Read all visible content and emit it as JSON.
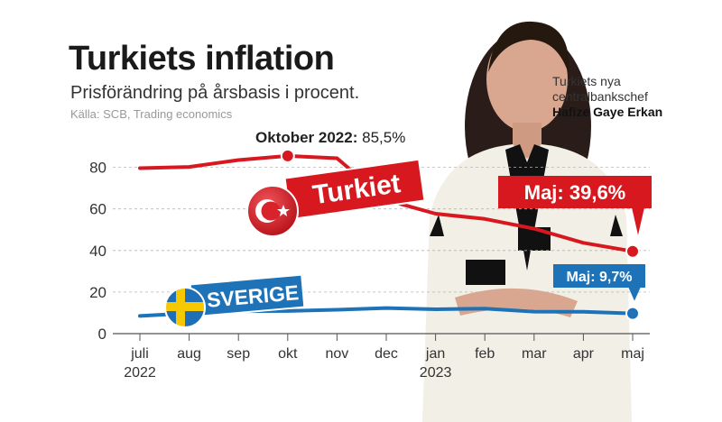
{
  "header": {
    "title": "Turkiets inflation",
    "subtitle": "Prisförändring på årsbasis i procent.",
    "source": "Källa: SCB, Trading economics"
  },
  "photo_caption": {
    "line1": "Turkiets nya",
    "line2": "centralbankschef",
    "name": "Hafize Gaye Erkan"
  },
  "annotations": {
    "peak_label": "Oktober 2022:",
    "peak_value": "85,5%",
    "turkiet_end": "Maj: 39,6%",
    "sverige_end": "Maj: 9,7%"
  },
  "colors": {
    "turkiet": "#d7191f",
    "sverige": "#1e73b8",
    "grid": "#b5b5b5"
  },
  "chart_data": {
    "type": "line",
    "categories": [
      "juli\n2022",
      "aug",
      "sep",
      "okt",
      "nov",
      "dec",
      "jan\n2023",
      "feb",
      "mar",
      "apr",
      "maj"
    ],
    "series": [
      {
        "name": "Turkiet",
        "values": [
          79.6,
          80.2,
          83.5,
          85.5,
          84.4,
          64.3,
          57.7,
          55.2,
          50.5,
          43.7,
          39.6
        ]
      },
      {
        "name": "Sverige",
        "values": [
          8.5,
          9.8,
          10.8,
          10.9,
          11.5,
          12.3,
          11.7,
          12.0,
          10.6,
          10.5,
          9.7
        ]
      }
    ],
    "yticks": [
      0,
      20,
      40,
      60,
      80
    ],
    "ylim": [
      0,
      90
    ],
    "grid": true,
    "series_labels": [
      "Turkiet",
      "SVERIGE"
    ]
  }
}
